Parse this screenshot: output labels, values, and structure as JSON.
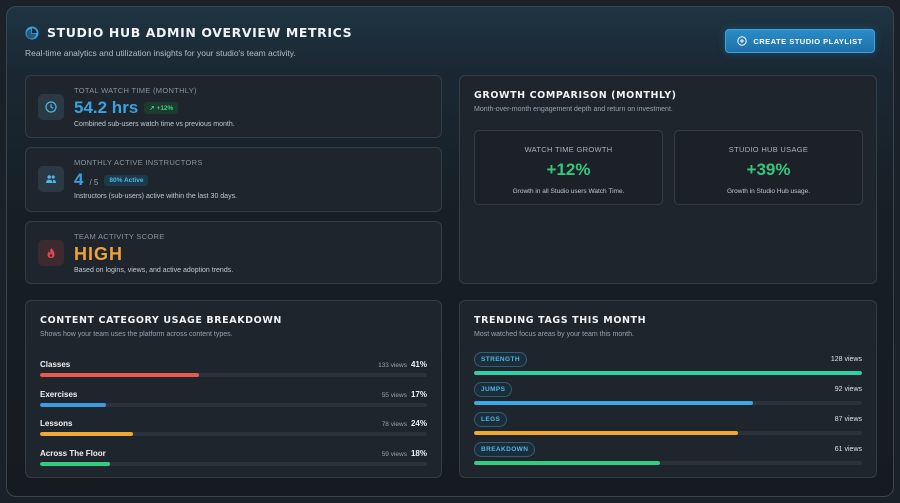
{
  "header": {
    "title": "STUDIO HUB ADMIN OVERVIEW METRICS",
    "subtitle": "Real-time analytics and utilization insights for your studio's team activity.",
    "cta_label": "CREATE STUDIO PLAYLIST"
  },
  "kpis": [
    {
      "label": "TOTAL WATCH TIME (MONTHLY)",
      "value": "54.2 hrs",
      "badge": "↗ +12%",
      "desc": "Combined sub-users watch time vs previous month.",
      "icon": "clock-icon"
    },
    {
      "label": "MONTHLY ACTIVE INSTRUCTORS",
      "value": "4",
      "value_sub": "/ 5",
      "badge": "80% Active",
      "desc": "Instructors (sub-users) active within the last 30 days.",
      "icon": "users-icon"
    },
    {
      "label": "TEAM ACTIVITY SCORE",
      "value": "HIGH",
      "desc": "Based on logins, views, and active adoption trends.",
      "icon": "flame-icon"
    }
  ],
  "growth": {
    "title": "GROWTH COMPARISON (MONTHLY)",
    "subtitle": "Month-over-month engagement depth and return on investment.",
    "boxes": [
      {
        "label": "WATCH TIME GROWTH",
        "value": "+12%",
        "desc": "Growth in all Studio users Watch Time."
      },
      {
        "label": "STUDIO HUB USAGE",
        "value": "+39%",
        "desc": "Growth in Studio Hub usage."
      }
    ]
  },
  "content_usage": {
    "title": "CONTENT CATEGORY USAGE BREAKDOWN",
    "subtitle": "Shows how your team uses the platform across content types.",
    "rows": [
      {
        "name": "Classes",
        "views": "133 views",
        "pct": "41%",
        "fill": 0.41,
        "color": "#e85a4f"
      },
      {
        "name": "Exercises",
        "views": "55 views",
        "pct": "17%",
        "fill": 0.17,
        "color": "#3d9be0"
      },
      {
        "name": "Lessons",
        "views": "78 views",
        "pct": "24%",
        "fill": 0.24,
        "color": "#f0a830"
      },
      {
        "name": "Across The Floor",
        "views": "59 views",
        "pct": "18%",
        "fill": 0.18,
        "color": "#2fcf7f"
      }
    ]
  },
  "tags": {
    "title": "TRENDING TAGS THIS MONTH",
    "subtitle": "Most watched focus areas by your team this month.",
    "rows": [
      {
        "name": "STRENGTH",
        "count": "128 views",
        "fill": 1.0,
        "color": "#2fd0a6"
      },
      {
        "name": "JUMPS",
        "count": "92 views",
        "fill": 0.72,
        "color": "#3aa9e6"
      },
      {
        "name": "LEGS",
        "count": "87 views",
        "fill": 0.68,
        "color": "#f0a830"
      },
      {
        "name": "BREAKDOWN",
        "count": "61 views",
        "fill": 0.48,
        "color": "#2fcf7f"
      }
    ]
  }
}
